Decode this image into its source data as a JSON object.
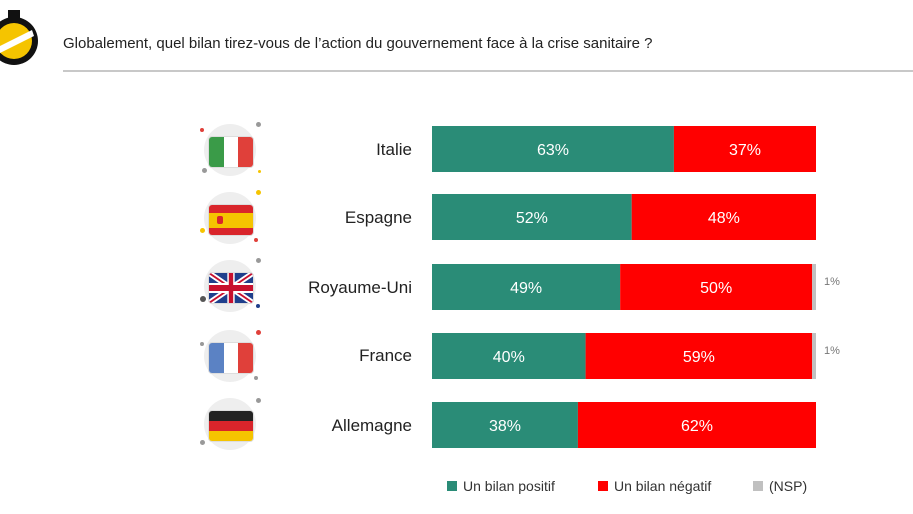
{
  "question": "Globalement, quel bilan tirez-vous de l’action du gouvernement face à la crise sanitaire ?",
  "colors": {
    "positive": "#2a8c77",
    "negative": "#ff0000",
    "nsp": "#c0c0c0",
    "accent": "#f5c400"
  },
  "chart_data": {
    "type": "bar",
    "orientation": "horizontal-stacked",
    "title": "Globalement, quel bilan tirez-vous de l’action du gouvernement face à la crise sanitaire ?",
    "categories": [
      "Italie",
      "Espagne",
      "Royaume-Uni",
      "France",
      "Allemagne"
    ],
    "series": [
      {
        "name": "Un bilan positif",
        "color": "#2a8c77",
        "values": [
          63,
          52,
          49,
          40,
          38
        ]
      },
      {
        "name": "Un bilan négatif",
        "color": "#ff0000",
        "values": [
          37,
          48,
          50,
          59,
          62
        ]
      },
      {
        "name": "(NSP)",
        "color": "#c0c0c0",
        "values": [
          0,
          0,
          1,
          1,
          0
        ]
      }
    ],
    "unit": "%",
    "xlim": [
      0,
      100
    ],
    "legend": "bottom"
  },
  "rows": [
    {
      "country": "Italie",
      "flag": "italy-flag-icon"
    },
    {
      "country": "Espagne",
      "flag": "spain-flag-icon"
    },
    {
      "country": "Royaume-Uni",
      "flag": "uk-flag-icon"
    },
    {
      "country": "France",
      "flag": "france-flag-icon"
    },
    {
      "country": "Allemagne",
      "flag": "germany-flag-icon"
    }
  ],
  "legend": {
    "positive": "Un bilan positif",
    "negative": "Un bilan négatif",
    "nsp": "(NSP)"
  }
}
